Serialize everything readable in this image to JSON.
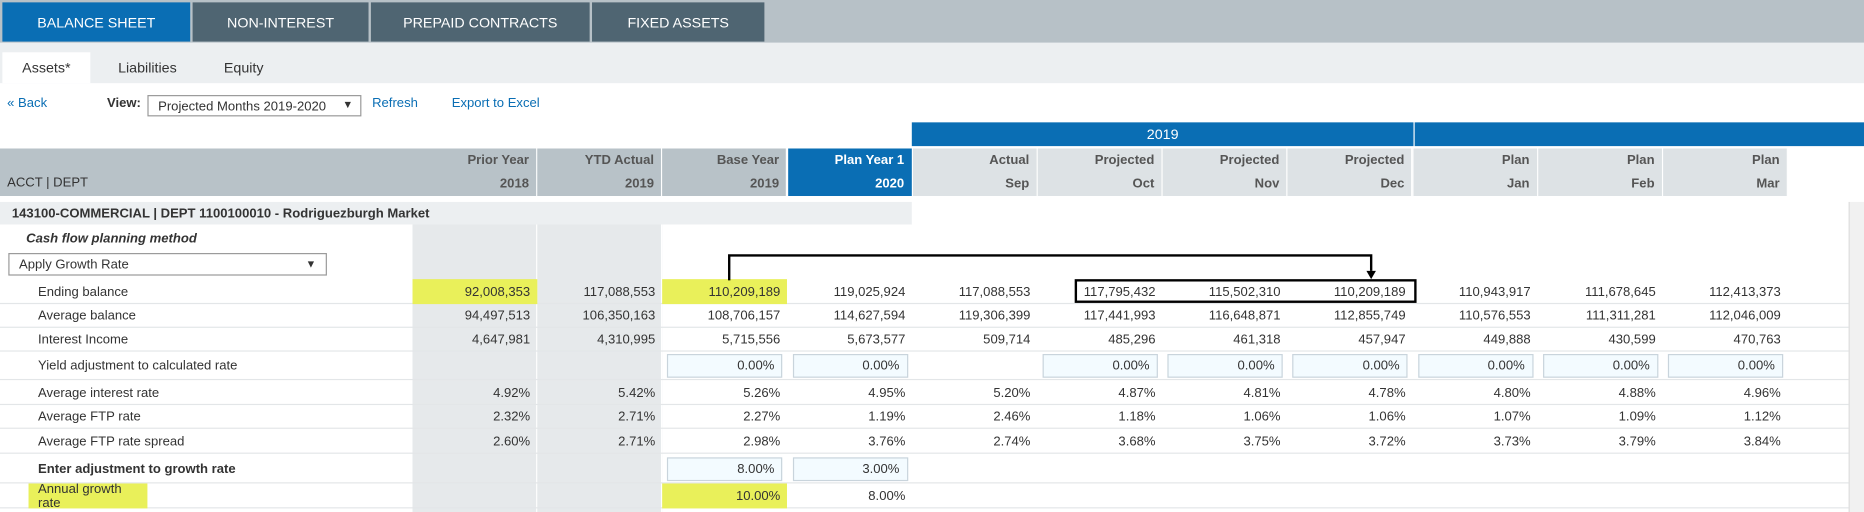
{
  "tabs": [
    "BALANCE SHEET",
    "NON-INTEREST",
    "PREPAID CONTRACTS",
    "FIXED ASSETS"
  ],
  "subtabs": [
    "Assets*",
    "Liabilities",
    "Equity"
  ],
  "toolbar": {
    "back": "« Back",
    "view_label": "View:",
    "view_value": "Projected Months 2019-2020",
    "refresh": "Refresh",
    "export": "Export to Excel"
  },
  "year_band": "2019",
  "table": {
    "corner": "ACCT | DEPT",
    "columns": [
      {
        "top": "Prior Year",
        "bottom": "2018"
      },
      {
        "top": "YTD Actual",
        "bottom": "2019"
      },
      {
        "top": "Base Year",
        "bottom": "2019"
      },
      {
        "top": "Plan Year 1",
        "bottom": "2020"
      },
      {
        "top": "Actual",
        "bottom": "Sep"
      },
      {
        "top": "Projected",
        "bottom": "Oct"
      },
      {
        "top": "Projected",
        "bottom": "Nov"
      },
      {
        "top": "Projected",
        "bottom": "Dec"
      },
      {
        "top": "Plan",
        "bottom": "Jan"
      },
      {
        "top": "Plan",
        "bottom": "Feb"
      },
      {
        "top": "Plan",
        "bottom": "Mar"
      }
    ],
    "section": "143100-COMMERCIAL | DEPT 1100100010 - Rodriguezburgh Market",
    "method_label": "Cash flow planning method",
    "method_value": "Apply Growth Rate",
    "rows": [
      {
        "label": "Ending balance",
        "cells": [
          "92,008,353",
          "117,088,553",
          "110,209,189",
          "119,025,924",
          "117,088,553",
          "117,795,432",
          "115,502,310",
          "110,209,189",
          "110,943,917",
          "111,678,645",
          "112,413,373"
        ]
      },
      {
        "label": "Average balance",
        "cells": [
          "94,497,513",
          "106,350,163",
          "108,706,157",
          "114,627,594",
          "119,306,399",
          "117,441,993",
          "116,648,871",
          "112,855,749",
          "110,576,553",
          "111,311,281",
          "112,046,009"
        ]
      },
      {
        "label": "Interest Income",
        "cells": [
          "4,647,981",
          "4,310,995",
          "5,715,556",
          "5,673,577",
          "509,714",
          "485,296",
          "461,318",
          "457,947",
          "449,888",
          "430,599",
          "470,763"
        ]
      },
      {
        "label": "Yield adjustment to calculated rate",
        "cells": [
          null,
          null,
          "0.00%",
          "0.00%",
          null,
          "0.00%",
          "0.00%",
          "0.00%",
          "0.00%",
          "0.00%",
          "0.00%"
        ]
      },
      {
        "label": "Average interest rate",
        "cells": [
          "4.92%",
          "5.42%",
          "5.26%",
          "4.95%",
          "5.20%",
          "4.87%",
          "4.81%",
          "4.78%",
          "4.80%",
          "4.88%",
          "4.96%"
        ]
      },
      {
        "label": "Average FTP rate",
        "cells": [
          "2.32%",
          "2.71%",
          "2.27%",
          "1.19%",
          "2.46%",
          "1.18%",
          "1.06%",
          "1.06%",
          "1.07%",
          "1.09%",
          "1.12%"
        ]
      },
      {
        "label": "Average FTP rate spread",
        "cells": [
          "2.60%",
          "2.71%",
          "2.98%",
          "3.76%",
          "2.74%",
          "3.68%",
          "3.75%",
          "3.72%",
          "3.73%",
          "3.79%",
          "3.84%"
        ]
      },
      {
        "label": "Enter adjustment to growth rate",
        "cells": [
          null,
          null,
          "8.00%",
          "3.00%",
          null,
          null,
          null,
          null,
          null,
          null,
          null
        ]
      },
      {
        "label": "Annual growth rate",
        "cells": [
          null,
          null,
          "10.00%",
          "8.00%",
          null,
          null,
          null,
          null,
          null,
          null,
          null
        ]
      }
    ]
  }
}
